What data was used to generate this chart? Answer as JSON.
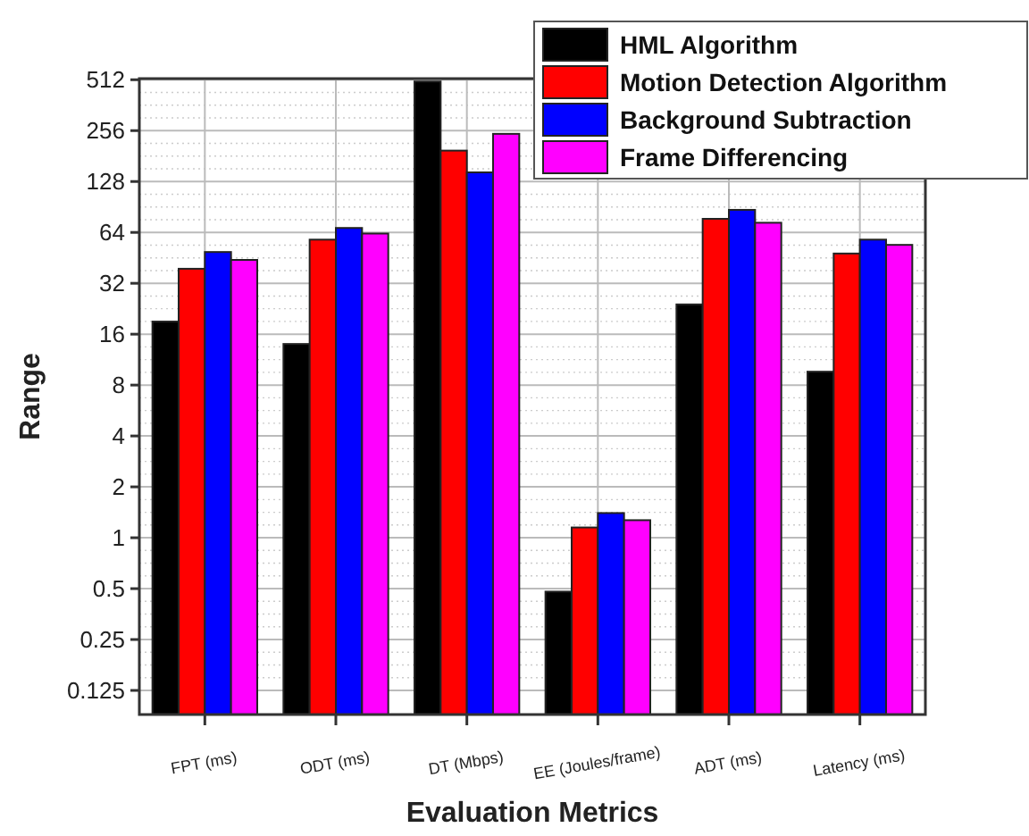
{
  "chart_data": {
    "type": "bar",
    "xlabel": "Evaluation Metrics",
    "ylabel": "Range",
    "categories": [
      "FPT (ms)",
      "ODT (ms)",
      "DT (Mbps)",
      "EE (Joules/frame)",
      "ADT (ms)",
      "Latency (ms)"
    ],
    "series": [
      {
        "name": "HML Algorithm",
        "color": "#000000",
        "values": [
          19,
          14,
          500,
          0.48,
          24,
          9.6
        ]
      },
      {
        "name": "Motion Detection Algorithm",
        "color": "#ff0000",
        "values": [
          39,
          58,
          195,
          1.15,
          77,
          48
        ]
      },
      {
        "name": "Background Subtraction",
        "color": "#0000ff",
        "values": [
          49,
          68,
          145,
          1.4,
          87,
          58
        ]
      },
      {
        "name": "Frame Differencing",
        "color": "#ff00ff",
        "values": [
          44,
          63,
          245,
          1.27,
          73,
          54
        ]
      }
    ],
    "log": true,
    "ylim": [
      0.09,
      520
    ],
    "yticks": [
      0.125,
      0.25,
      0.5,
      1,
      2,
      4,
      8,
      16,
      32,
      64,
      128,
      256,
      512
    ],
    "grid": true,
    "legend": "top right"
  }
}
